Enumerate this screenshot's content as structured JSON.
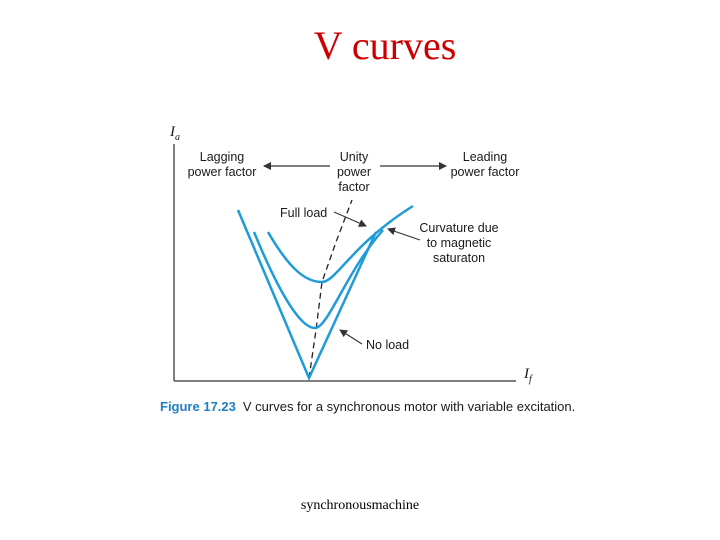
{
  "slide": {
    "title": "V curves",
    "footer": "synchronousmachine"
  },
  "figure": {
    "axis_y_symbol": "I",
    "axis_y_subscript": "a",
    "axis_x_symbol": "I",
    "axis_x_subscript": "f",
    "lagging_line1": "Lagging",
    "lagging_line2": "power factor",
    "unity_line1": "Unity",
    "unity_line2": "power",
    "unity_line3": "factor",
    "leading_line1": "Leading",
    "leading_line2": "power factor",
    "full_load": "Full load",
    "curvature_line1": "Curvature due",
    "curvature_line2": "to magnetic",
    "curvature_line3": "saturaton",
    "no_load": "No load",
    "caption_number": "Figure 17.23",
    "caption_text": "V curves for a synchronous motor with variable excitation."
  },
  "colors": {
    "title": "#cc0000",
    "curve": "#1f9bd8",
    "caption_number": "#1f7fc0",
    "axis": "#333333"
  }
}
